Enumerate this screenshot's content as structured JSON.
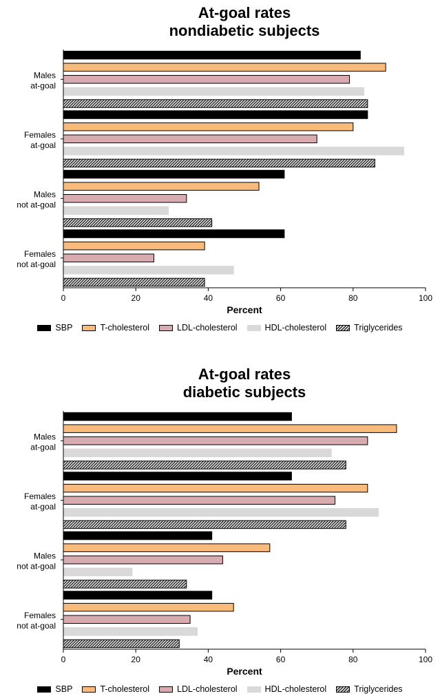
{
  "series_meta": [
    {
      "name": "SBP",
      "color": "#000000",
      "border": "#000000",
      "pattern": "solid"
    },
    {
      "name": "T-cholesterol",
      "color": "#F9BB7B",
      "border": "#000000",
      "pattern": "solid"
    },
    {
      "name": "LDL-cholesterol",
      "color": "#D7ABAF",
      "border": "#000000",
      "pattern": "solid"
    },
    {
      "name": "HDL-cholesterol",
      "color": "#D9D9D9",
      "border": "#D9D9D9",
      "pattern": "solid"
    },
    {
      "name": "Triglycerides",
      "color": "#D9D9D9",
      "border": "#000000",
      "pattern": "hatch"
    }
  ],
  "chart_data": [
    {
      "type": "bar",
      "orientation": "horizontal",
      "title_lines": [
        "At-goal rates",
        "nondiabetic subjects"
      ],
      "categories": [
        [
          "Males",
          "at-goal"
        ],
        [
          "Females",
          "at-goal"
        ],
        [
          "Males",
          "not at-goal"
        ],
        [
          "Females",
          "not at-goal"
        ]
      ],
      "xlabel": "Percent",
      "xlim": [
        0,
        100
      ],
      "xticks": [
        "0",
        "20",
        "40",
        "60",
        "80",
        "100"
      ],
      "legend": "bottom",
      "grid": false,
      "series": [
        {
          "name": "SBP",
          "values": [
            82,
            84,
            61,
            61
          ]
        },
        {
          "name": "T-cholesterol",
          "values": [
            89,
            80,
            54,
            39
          ]
        },
        {
          "name": "LDL-cholesterol",
          "values": [
            79,
            70,
            34,
            25
          ]
        },
        {
          "name": "HDL-cholesterol",
          "values": [
            83,
            94,
            29,
            47
          ]
        },
        {
          "name": "Triglycerides",
          "values": [
            84,
            86,
            41,
            39
          ]
        }
      ]
    },
    {
      "type": "bar",
      "orientation": "horizontal",
      "title_lines": [
        "At-goal rates",
        "diabetic subjects"
      ],
      "categories": [
        [
          "Males",
          "at-goal"
        ],
        [
          "Females",
          "at-goal"
        ],
        [
          "Males",
          "not at-goal"
        ],
        [
          "Females",
          "not at-goal"
        ]
      ],
      "xlabel": "Percent",
      "xlim": [
        0,
        100
      ],
      "xticks": [
        "0",
        "20",
        "40",
        "60",
        "80",
        "100"
      ],
      "legend": "bottom",
      "grid": false,
      "series": [
        {
          "name": "SBP",
          "values": [
            63,
            63,
            41,
            41
          ]
        },
        {
          "name": "T-cholesterol",
          "values": [
            92,
            84,
            57,
            47
          ]
        },
        {
          "name": "LDL-cholesterol",
          "values": [
            84,
            75,
            44,
            35
          ]
        },
        {
          "name": "HDL-cholesterol",
          "values": [
            74,
            87,
            19,
            37
          ]
        },
        {
          "name": "Triglycerides",
          "values": [
            78,
            78,
            34,
            32
          ]
        }
      ]
    }
  ]
}
